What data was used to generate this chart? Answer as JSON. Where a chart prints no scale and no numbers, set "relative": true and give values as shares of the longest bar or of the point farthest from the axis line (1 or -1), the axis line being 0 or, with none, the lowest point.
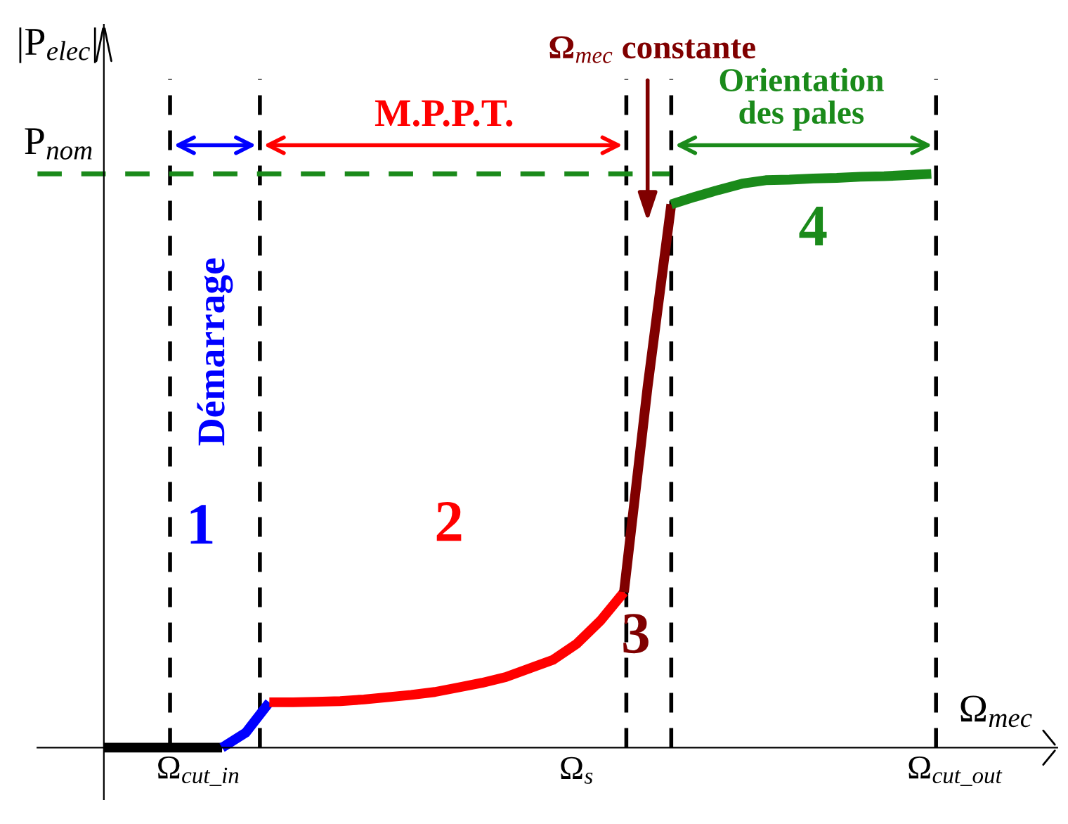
{
  "chart_data": {
    "type": "line",
    "relative": true,
    "xlabel": "Ω$_{mec}$",
    "ylabel": "|P$_{elec}$|",
    "categories": [
      null,
      null,
      null,
      null,
      "Ω$_{cut_in}$",
      null,
      null,
      null,
      null,
      null,
      null,
      null,
      null,
      null,
      null,
      null,
      null,
      null,
      null,
      null,
      "Ω$_{s}$",
      null,
      null,
      null,
      null,
      null,
      null,
      null,
      null,
      null,
      null,
      null,
      null,
      null,
      null,
      null,
      "Ω$_{cut_out}$"
    ],
    "series": [
      {
        "color": "#000000",
        "values": [
          0,
          0,
          0,
          0,
          0,
          0,
          null,
          null,
          null,
          null,
          null,
          null,
          null,
          null,
          null,
          null,
          null,
          null,
          null,
          null,
          null,
          null,
          null,
          null,
          null,
          null,
          null,
          null,
          null,
          null,
          null,
          null,
          null,
          null,
          null,
          null,
          null
        ]
      },
      {
        "color": "#0000ff",
        "values": [
          null,
          null,
          null,
          null,
          null,
          0,
          0.026,
          0.079,
          null,
          null,
          null,
          null,
          null,
          null,
          null,
          null,
          null,
          null,
          null,
          null,
          null,
          null,
          null,
          null,
          null,
          null,
          null,
          null,
          null,
          null,
          null,
          null,
          null,
          null,
          null,
          null,
          null
        ]
      },
      {
        "color": "#ff0000",
        "values": [
          null,
          null,
          null,
          null,
          null,
          null,
          null,
          0.079,
          0.079,
          0.08,
          0.081,
          0.084,
          0.088,
          0.092,
          0.097,
          0.105,
          0.113,
          0.123,
          0.138,
          0.153,
          0.181,
          0.221,
          0.271,
          null,
          null,
          null,
          null,
          null,
          null,
          null,
          null,
          null,
          null,
          null,
          null,
          null,
          null
        ]
      },
      {
        "color": "#800000",
        "values": [
          null,
          null,
          null,
          null,
          null,
          null,
          null,
          null,
          null,
          null,
          null,
          null,
          null,
          null,
          null,
          null,
          null,
          null,
          null,
          null,
          null,
          null,
          0.271,
          0.629,
          0.947,
          null,
          null,
          null,
          null,
          null,
          null,
          null,
          null,
          null,
          null,
          null,
          null
        ]
      },
      {
        "color": "#1a8a1a",
        "values": [
          null,
          null,
          null,
          null,
          null,
          null,
          null,
          null,
          null,
          null,
          null,
          null,
          null,
          null,
          null,
          null,
          null,
          null,
          null,
          null,
          null,
          null,
          null,
          null,
          0.947,
          0.96,
          0.972,
          0.983,
          0.989,
          0.99,
          0.992,
          0.993,
          0.995,
          0.996,
          0.998,
          1.0,
          null
        ]
      }
    ],
    "ref_lines": [
      {
        "axis": "y",
        "value": 1.0,
        "label": "P$_{nom}$",
        "color": "#1a8a1a",
        "line_style": "dashed"
      }
    ],
    "annotations": [
      "Démarrage",
      "M.P.P.T.",
      "Ω$_{mec}$ constante",
      "Orientation\ndes pales",
      "1",
      "2",
      "3",
      "4"
    ]
  }
}
